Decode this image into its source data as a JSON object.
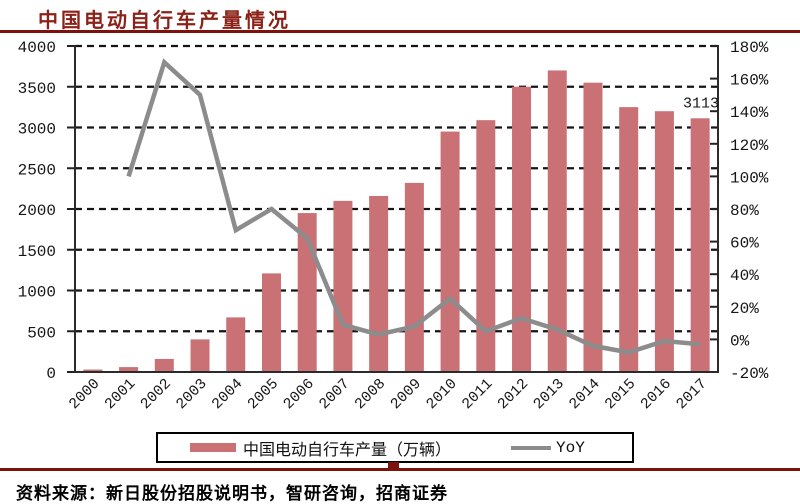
{
  "page": {
    "title": "中国电动自行车产量情况",
    "source": "资料来源：新日股份招股说明书，智研咨询，招商证券",
    "accent_color": "#7C120B",
    "title_color": "#8B2219"
  },
  "legend": {
    "items": [
      {
        "label": "中国电动自行车产量（万辆）",
        "swatch": "bar",
        "color": "#C97175"
      },
      {
        "label": "YoY",
        "swatch": "line",
        "color": "#8C8C8C"
      }
    ]
  },
  "chart_data": {
    "type": "combo-bar-line",
    "title": "中国电动自行车产量情况",
    "categories": [
      "2000",
      "2001",
      "2002",
      "2003",
      "2004",
      "2005",
      "2006",
      "2007",
      "2008",
      "2009",
      "2010",
      "2011",
      "2012",
      "2013",
      "2014",
      "2015",
      "2016",
      "2017"
    ],
    "series": [
      {
        "name": "中国电动自行车产量（万辆）",
        "type": "bar",
        "axis": "left",
        "color": "#C97175",
        "values": [
          30,
          60,
          160,
          400,
          670,
          1210,
          1950,
          2100,
          2160,
          2320,
          2950,
          3090,
          3500,
          3700,
          3550,
          3250,
          3200,
          3113
        ]
      },
      {
        "name": "YoY",
        "type": "line",
        "axis": "right",
        "color": "#8C8C8C",
        "unit": "%",
        "values": [
          null,
          100,
          170,
          150,
          67,
          80,
          62,
          9,
          3,
          8,
          25,
          5,
          13,
          6,
          -4,
          -8,
          -1,
          -3
        ]
      }
    ],
    "left_axis": {
      "min": 0,
      "max": 4000,
      "step": 500,
      "ticks": [
        "0",
        "500",
        "1000",
        "1500",
        "2000",
        "2500",
        "3000",
        "3500",
        "4000"
      ]
    },
    "right_axis": {
      "min": -20,
      "max": 180,
      "step": 20,
      "ticks": [
        "-20%",
        "0%",
        "20%",
        "40%",
        "60%",
        "80%",
        "100%",
        "120%",
        "140%",
        "160%",
        "180%"
      ]
    },
    "annotation": {
      "text": "3113",
      "category": "2017"
    },
    "grid": "dashed-horizontal",
    "legend_position": "bottom"
  }
}
